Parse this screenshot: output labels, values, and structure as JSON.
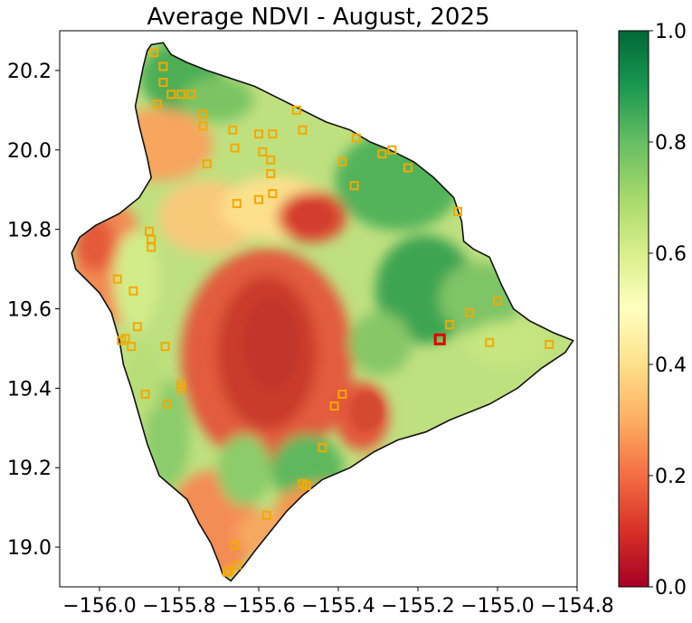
{
  "title": "Average NDVI - August, 2025",
  "map": {
    "x_range": [
      -156.1,
      -154.8
    ],
    "y_range": [
      18.9,
      20.3
    ],
    "x_ticks": [
      -156.0,
      -155.8,
      -155.6,
      -155.4,
      -155.2,
      -155.0,
      -154.8
    ],
    "x_tick_labels": [
      "−156.0",
      "−155.8",
      "−155.6",
      "−155.4",
      "−155.2",
      "−155.0",
      "−154.8"
    ],
    "y_ticks": [
      19.0,
      19.2,
      19.4,
      19.6,
      19.8,
      20.0,
      20.2
    ],
    "y_tick_labels": [
      "19.0",
      "19.2",
      "19.4",
      "19.6",
      "19.8",
      "20.0",
      "20.2"
    ],
    "colormap": "RdYlGn",
    "colorbar": {
      "range": [
        0.0,
        1.0
      ],
      "tick_labels": [
        "0.0",
        "0.2",
        "0.4",
        "0.6",
        "0.8",
        "1.0"
      ],
      "stops": [
        "#a50026",
        "#d73027",
        "#f46d43",
        "#fdae61",
        "#fee08b",
        "#ffffbf",
        "#d9ef8b",
        "#a6d96a",
        "#66bd63",
        "#1a9850",
        "#006837"
      ]
    },
    "marker_color": "#f5a800",
    "highlight_color": "#e00000",
    "sites": [
      [
        -155.863,
        20.245
      ],
      [
        -155.84,
        20.21
      ],
      [
        -155.84,
        20.17
      ],
      [
        -155.82,
        20.14
      ],
      [
        -155.855,
        20.115
      ],
      [
        -155.795,
        20.14
      ],
      [
        -155.77,
        20.14
      ],
      [
        -155.74,
        20.09
      ],
      [
        -155.74,
        20.06
      ],
      [
        -155.73,
        19.965
      ],
      [
        -155.665,
        20.05
      ],
      [
        -155.66,
        20.005
      ],
      [
        -155.655,
        19.865
      ],
      [
        -155.6,
        20.04
      ],
      [
        -155.59,
        19.995
      ],
      [
        -155.565,
        20.04
      ],
      [
        -155.57,
        19.975
      ],
      [
        -155.57,
        19.94
      ],
      [
        -155.565,
        19.89
      ],
      [
        -155.6,
        19.875
      ],
      [
        -155.505,
        20.1
      ],
      [
        -155.49,
        20.05
      ],
      [
        -155.39,
        19.97
      ],
      [
        -155.36,
        19.91
      ],
      [
        -155.355,
        20.03
      ],
      [
        -155.29,
        19.99
      ],
      [
        -155.265,
        20.0
      ],
      [
        -155.225,
        19.955
      ],
      [
        -155.1,
        19.845
      ],
      [
        -155.12,
        19.56
      ],
      [
        -155.07,
        19.59
      ],
      [
        -155.0,
        19.62
      ],
      [
        -155.02,
        19.515
      ],
      [
        -154.87,
        19.51
      ],
      [
        -155.39,
        19.385
      ],
      [
        -155.41,
        19.355
      ],
      [
        -155.44,
        19.25
      ],
      [
        -155.49,
        19.16
      ],
      [
        -155.48,
        19.155
      ],
      [
        -155.58,
        19.08
      ],
      [
        -155.66,
        19.005
      ],
      [
        -155.655,
        18.955
      ],
      [
        -155.675,
        18.94
      ],
      [
        -155.68,
        18.937
      ],
      [
        -155.875,
        19.795
      ],
      [
        -155.87,
        19.775
      ],
      [
        -155.87,
        19.755
      ],
      [
        -155.955,
        19.675
      ],
      [
        -155.915,
        19.645
      ],
      [
        -155.905,
        19.555
      ],
      [
        -155.935,
        19.525
      ],
      [
        -155.945,
        19.52
      ],
      [
        -155.92,
        19.505
      ],
      [
        -155.835,
        19.505
      ],
      [
        -155.795,
        19.41
      ],
      [
        -155.795,
        19.4
      ],
      [
        -155.885,
        19.385
      ],
      [
        -155.83,
        19.36
      ]
    ],
    "highlight_site": [
      -155.145,
      19.523
    ]
  }
}
